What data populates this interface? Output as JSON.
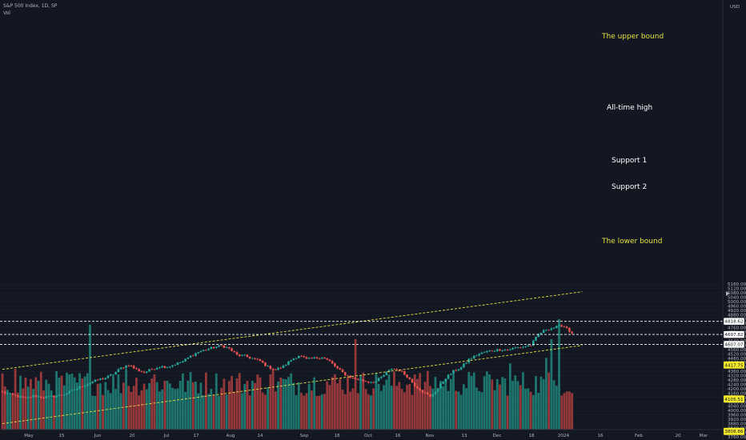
{
  "header": {
    "title": "S&P 500 Index, 1D, SP",
    "indicator": "Vol"
  },
  "colors": {
    "background": "#131722",
    "up": "#26a69a",
    "down": "#ef5350",
    "vol_up": "#1e7a72",
    "vol_down": "#9c3a3c",
    "channel": "#e5e043",
    "level": "#ffffff",
    "axis_text": "#b2b5be"
  },
  "chart_data": {
    "type": "candlestick",
    "currency": "USD",
    "y_ticks": [
      3760,
      3800,
      3840,
      3880,
      3920,
      3960,
      4000,
      4040,
      4080,
      4120,
      4160,
      4200,
      4240,
      4280,
      4320,
      4360,
      4400,
      4440,
      4480,
      4520,
      4560,
      4600,
      4640,
      4680,
      4720,
      4760,
      4800,
      4840,
      4880,
      4920,
      4960,
      5000,
      5040,
      5080,
      5120,
      5160
    ],
    "ylim": [
      3750,
      5185
    ],
    "x_ticks": [
      "May",
      "15",
      "Jun",
      "20",
      "Jul",
      "17",
      "Aug",
      "14",
      "Sep",
      "18",
      "Oct",
      "16",
      "Nov",
      "13",
      "Dec",
      "18",
      "2024",
      "16",
      "Feb",
      "20",
      "Mar"
    ],
    "price_tags": [
      {
        "label": "4818.62",
        "value": 4818.62,
        "style": "white"
      },
      {
        "label": "4697.82",
        "value": 4697.82,
        "style": "white"
      },
      {
        "label": "4607.07",
        "value": 4607.07,
        "style": "white"
      },
      {
        "label": "4417.75",
        "value": 4417.75,
        "style": "yellow"
      },
      {
        "label": "4105.51",
        "value": 4105.51,
        "style": "yellow"
      },
      {
        "label": "3808.86",
        "value": 3808.86,
        "style": "yellow"
      }
    ],
    "levels": [
      {
        "name": "All-time high",
        "value": 4818.62
      },
      {
        "name": "Support 1",
        "value": 4697.82
      },
      {
        "name": "Support 2",
        "value": 4607.07
      }
    ],
    "channel": {
      "upper": {
        "name": "The upper bound",
        "start": {
          "x_index": 0,
          "value": 4378
        },
        "end": {
          "x_index": 225,
          "value": 5090
        }
      },
      "lower": {
        "name": "The lower bound",
        "start": {
          "x_index": 0,
          "value": 3880
        },
        "end": {
          "x_index": 225,
          "value": 4598
        }
      }
    },
    "anchors": [
      [
        0,
        4168
      ],
      [
        5,
        4135
      ],
      [
        9,
        4110
      ],
      [
        12,
        4135
      ],
      [
        16,
        4120
      ],
      [
        20,
        4130
      ],
      [
        24,
        4150
      ],
      [
        28,
        4192
      ],
      [
        31,
        4225
      ],
      [
        34,
        4255
      ],
      [
        37,
        4282
      ],
      [
        40,
        4300
      ],
      [
        43,
        4335
      ],
      [
        46,
        4390
      ],
      [
        49,
        4420
      ],
      [
        52,
        4375
      ],
      [
        55,
        4350
      ],
      [
        58,
        4380
      ],
      [
        61,
        4405
      ],
      [
        64,
        4400
      ],
      [
        67,
        4425
      ],
      [
        70,
        4450
      ],
      [
        73,
        4500
      ],
      [
        76,
        4538
      ],
      [
        79,
        4560
      ],
      [
        82,
        4580
      ],
      [
        85,
        4595
      ],
      [
        88,
        4567
      ],
      [
        91,
        4510
      ],
      [
        94,
        4500
      ],
      [
        97,
        4478
      ],
      [
        100,
        4455
      ],
      [
        103,
        4400
      ],
      [
        106,
        4375
      ],
      [
        109,
        4405
      ],
      [
        112,
        4465
      ],
      [
        115,
        4505
      ],
      [
        118,
        4470
      ],
      [
        121,
        4480
      ],
      [
        124,
        4490
      ],
      [
        127,
        4450
      ],
      [
        130,
        4385
      ],
      [
        133,
        4330
      ],
      [
        136,
        4295
      ],
      [
        139,
        4280
      ],
      [
        142,
        4262
      ],
      [
        145,
        4270
      ],
      [
        148,
        4325
      ],
      [
        151,
        4385
      ],
      [
        154,
        4370
      ],
      [
        157,
        4315
      ],
      [
        160,
        4230
      ],
      [
        163,
        4175
      ],
      [
        166,
        4125
      ],
      [
        169,
        4205
      ],
      [
        172,
        4300
      ],
      [
        175,
        4360
      ],
      [
        178,
        4395
      ],
      [
        181,
        4470
      ],
      [
        184,
        4510
      ],
      [
        187,
        4535
      ],
      [
        190,
        4550
      ],
      [
        193,
        4560
      ],
      [
        196,
        4558
      ],
      [
        199,
        4575
      ],
      [
        202,
        4585
      ],
      [
        205,
        4600
      ],
      [
        208,
        4700
      ],
      [
        211,
        4745
      ],
      [
        214,
        4760
      ],
      [
        217,
        4780
      ],
      [
        219,
        4760
      ],
      [
        221,
        4700
      ]
    ],
    "volume_spikes": [
      [
        5,
        0.55
      ],
      [
        34,
        0.95
      ],
      [
        48,
        0.55
      ],
      [
        59,
        0.5
      ],
      [
        105,
        0.55
      ],
      [
        137,
        0.82
      ],
      [
        160,
        0.5
      ],
      [
        197,
        0.6
      ],
      [
        213,
        0.82
      ],
      [
        216,
        1.0
      ],
      [
        211,
        0.65
      ]
    ]
  },
  "labels": {
    "upper": "The upper bound",
    "ath": "All-time high",
    "s1": "Support 1",
    "s2": "Support 2",
    "lower": "The lower bound",
    "currency": "USD"
  }
}
